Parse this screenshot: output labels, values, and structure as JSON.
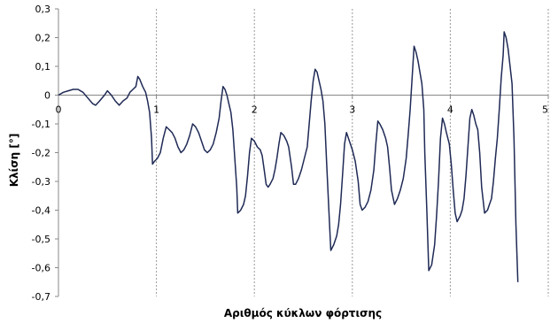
{
  "chart_data": {
    "type": "line",
    "xlabel": "Αριθμός κύκλων φόρτισης",
    "ylabel": "Κλίση [°]",
    "xlim": [
      0,
      5
    ],
    "ylim": [
      -0.7,
      0.3
    ],
    "y_ticks": [
      "0,3",
      "0,2",
      "0,1",
      "0",
      "-0,1",
      "-0,2",
      "-0,3",
      "-0,4",
      "-0,5",
      "-0,6",
      "-0,7"
    ],
    "x_ticks": [
      "0",
      "1",
      "2",
      "3",
      "4",
      "5"
    ],
    "grid": "vertical dashed at integer cycles",
    "line_color": "#1f2a55",
    "series": [
      {
        "points": [
          [
            0.0,
            0.0
          ],
          [
            0.05,
            0.01
          ],
          [
            0.1,
            0.015
          ],
          [
            0.15,
            0.02
          ],
          [
            0.2,
            0.02
          ],
          [
            0.25,
            0.01
          ],
          [
            0.3,
            -0.01
          ],
          [
            0.35,
            -0.03
          ],
          [
            0.38,
            -0.035
          ],
          [
            0.42,
            -0.02
          ],
          [
            0.47,
            0.0
          ],
          [
            0.5,
            0.015
          ],
          [
            0.54,
            0.0
          ],
          [
            0.58,
            -0.02
          ],
          [
            0.62,
            -0.035
          ],
          [
            0.66,
            -0.02
          ],
          [
            0.7,
            -0.01
          ],
          [
            0.73,
            0.01
          ],
          [
            0.76,
            0.02
          ],
          [
            0.79,
            0.03
          ],
          [
            0.81,
            0.065
          ],
          [
            0.83,
            0.055
          ],
          [
            0.86,
            0.03
          ],
          [
            0.89,
            0.01
          ],
          [
            0.91,
            -0.02
          ],
          [
            0.93,
            -0.06
          ],
          [
            0.95,
            -0.15
          ],
          [
            0.96,
            -0.24
          ],
          [
            0.98,
            -0.23
          ],
          [
            1.01,
            -0.22
          ],
          [
            1.04,
            -0.2
          ],
          [
            1.07,
            -0.15
          ],
          [
            1.1,
            -0.11
          ],
          [
            1.13,
            -0.12
          ],
          [
            1.16,
            -0.13
          ],
          [
            1.19,
            -0.15
          ],
          [
            1.22,
            -0.18
          ],
          [
            1.25,
            -0.2
          ],
          [
            1.28,
            -0.19
          ],
          [
            1.31,
            -0.17
          ],
          [
            1.34,
            -0.14
          ],
          [
            1.37,
            -0.1
          ],
          [
            1.4,
            -0.11
          ],
          [
            1.43,
            -0.13
          ],
          [
            1.46,
            -0.16
          ],
          [
            1.49,
            -0.19
          ],
          [
            1.52,
            -0.2
          ],
          [
            1.55,
            -0.19
          ],
          [
            1.58,
            -0.17
          ],
          [
            1.61,
            -0.13
          ],
          [
            1.64,
            -0.08
          ],
          [
            1.66,
            -0.02
          ],
          [
            1.68,
            0.03
          ],
          [
            1.7,
            0.02
          ],
          [
            1.72,
            0.0
          ],
          [
            1.74,
            -0.03
          ],
          [
            1.76,
            -0.06
          ],
          [
            1.78,
            -0.12
          ],
          [
            1.8,
            -0.22
          ],
          [
            1.82,
            -0.32
          ],
          [
            1.83,
            -0.41
          ],
          [
            1.86,
            -0.4
          ],
          [
            1.89,
            -0.38
          ],
          [
            1.91,
            -0.35
          ],
          [
            1.93,
            -0.28
          ],
          [
            1.95,
            -0.2
          ],
          [
            1.97,
            -0.15
          ],
          [
            2.0,
            -0.16
          ],
          [
            2.03,
            -0.18
          ],
          [
            2.06,
            -0.19
          ],
          [
            2.08,
            -0.21
          ],
          [
            2.1,
            -0.26
          ],
          [
            2.12,
            -0.31
          ],
          [
            2.14,
            -0.32
          ],
          [
            2.16,
            -0.31
          ],
          [
            2.19,
            -0.29
          ],
          [
            2.21,
            -0.26
          ],
          [
            2.23,
            -0.22
          ],
          [
            2.25,
            -0.17
          ],
          [
            2.27,
            -0.13
          ],
          [
            2.3,
            -0.14
          ],
          [
            2.33,
            -0.16
          ],
          [
            2.35,
            -0.18
          ],
          [
            2.38,
            -0.25
          ],
          [
            2.4,
            -0.31
          ],
          [
            2.42,
            -0.31
          ],
          [
            2.45,
            -0.29
          ],
          [
            2.48,
            -0.26
          ],
          [
            2.51,
            -0.22
          ],
          [
            2.54,
            -0.18
          ],
          [
            2.56,
            -0.1
          ],
          [
            2.58,
            -0.02
          ],
          [
            2.6,
            0.05
          ],
          [
            2.62,
            0.09
          ],
          [
            2.64,
            0.08
          ],
          [
            2.66,
            0.05
          ],
          [
            2.68,
            0.02
          ],
          [
            2.7,
            -0.02
          ],
          [
            2.72,
            -0.1
          ],
          [
            2.74,
            -0.25
          ],
          [
            2.76,
            -0.4
          ],
          [
            2.78,
            -0.54
          ],
          [
            2.81,
            -0.52
          ],
          [
            2.84,
            -0.49
          ],
          [
            2.86,
            -0.45
          ],
          [
            2.88,
            -0.38
          ],
          [
            2.9,
            -0.28
          ],
          [
            2.92,
            -0.17
          ],
          [
            2.94,
            -0.13
          ],
          [
            2.97,
            -0.16
          ],
          [
            3.0,
            -0.19
          ],
          [
            3.03,
            -0.23
          ],
          [
            3.06,
            -0.3
          ],
          [
            3.08,
            -0.38
          ],
          [
            3.1,
            -0.4
          ],
          [
            3.13,
            -0.39
          ],
          [
            3.16,
            -0.37
          ],
          [
            3.19,
            -0.33
          ],
          [
            3.22,
            -0.26
          ],
          [
            3.24,
            -0.17
          ],
          [
            3.26,
            -0.09
          ],
          [
            3.28,
            -0.1
          ],
          [
            3.31,
            -0.12
          ],
          [
            3.34,
            -0.15
          ],
          [
            3.36,
            -0.18
          ],
          [
            3.38,
            -0.25
          ],
          [
            3.4,
            -0.33
          ],
          [
            3.43,
            -0.38
          ],
          [
            3.46,
            -0.36
          ],
          [
            3.49,
            -0.33
          ],
          [
            3.52,
            -0.29
          ],
          [
            3.55,
            -0.22
          ],
          [
            3.57,
            -0.14
          ],
          [
            3.59,
            -0.05
          ],
          [
            3.61,
            0.06
          ],
          [
            3.63,
            0.17
          ],
          [
            3.65,
            0.15
          ],
          [
            3.67,
            0.12
          ],
          [
            3.69,
            0.08
          ],
          [
            3.71,
            0.04
          ],
          [
            3.73,
            -0.05
          ],
          [
            3.74,
            -0.2
          ],
          [
            3.76,
            -0.4
          ],
          [
            3.78,
            -0.61
          ],
          [
            3.81,
            -0.59
          ],
          [
            3.84,
            -0.52
          ],
          [
            3.86,
            -0.42
          ],
          [
            3.88,
            -0.3
          ],
          [
            3.9,
            -0.15
          ],
          [
            3.92,
            -0.08
          ],
          [
            3.94,
            -0.1
          ],
          [
            3.96,
            -0.13
          ],
          [
            3.99,
            -0.17
          ],
          [
            4.01,
            -0.24
          ],
          [
            4.03,
            -0.33
          ],
          [
            4.05,
            -0.41
          ],
          [
            4.07,
            -0.44
          ],
          [
            4.1,
            -0.42
          ],
          [
            4.12,
            -0.4
          ],
          [
            4.14,
            -0.36
          ],
          [
            4.16,
            -0.28
          ],
          [
            4.18,
            -0.18
          ],
          [
            4.2,
            -0.08
          ],
          [
            4.22,
            -0.05
          ],
          [
            4.24,
            -0.07
          ],
          [
            4.26,
            -0.1
          ],
          [
            4.28,
            -0.12
          ],
          [
            4.3,
            -0.2
          ],
          [
            4.32,
            -0.32
          ],
          [
            4.35,
            -0.41
          ],
          [
            4.38,
            -0.4
          ],
          [
            4.4,
            -0.38
          ],
          [
            4.42,
            -0.36
          ],
          [
            4.44,
            -0.3
          ],
          [
            4.46,
            -0.22
          ],
          [
            4.48,
            -0.15
          ],
          [
            4.5,
            -0.05
          ],
          [
            4.52,
            0.06
          ],
          [
            4.54,
            0.14
          ],
          [
            4.55,
            0.22
          ],
          [
            4.57,
            0.2
          ],
          [
            4.59,
            0.16
          ],
          [
            4.61,
            0.1
          ],
          [
            4.63,
            0.04
          ],
          [
            4.65,
            -0.15
          ],
          [
            4.67,
            -0.45
          ],
          [
            4.69,
            -0.65
          ]
        ]
      }
    ]
  }
}
